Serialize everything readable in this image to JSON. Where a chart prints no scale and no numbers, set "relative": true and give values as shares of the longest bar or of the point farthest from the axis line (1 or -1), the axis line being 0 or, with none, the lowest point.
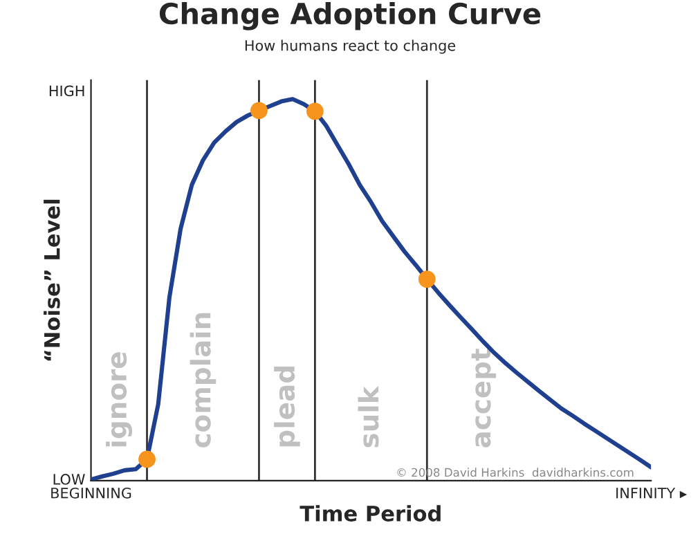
{
  "chart_data": {
    "type": "line",
    "title": "Change Adoption Curve",
    "subtitle": "How humans react to change",
    "xlabel": "Time Period",
    "ylabel": "“Noise” Level",
    "relative": true,
    "categories": [
      "BEGINNING",
      null,
      null,
      null,
      null,
      null,
      null,
      null,
      null,
      null,
      null,
      null,
      null,
      null,
      null,
      null,
      null,
      null,
      null,
      null,
      null,
      null,
      null,
      null,
      null,
      null,
      null,
      null,
      null,
      null,
      null,
      null,
      null,
      null,
      null,
      null,
      null,
      null,
      null,
      null,
      null,
      null,
      null,
      null,
      null,
      null,
      null,
      null,
      null,
      null,
      "INFINITY ▸"
    ],
    "series": [
      {
        "color": "#1f3f8f",
        "values": [
          0.003,
          0.011,
          0.018,
          0.027,
          0.03,
          0.056,
          0.2,
          0.48,
          0.66,
          0.775,
          0.84,
          0.886,
          0.915,
          0.94,
          0.957,
          0.97,
          0.982,
          0.994,
          1.0,
          0.987,
          0.968,
          0.93,
          0.88,
          0.83,
          0.775,
          0.73,
          0.68,
          0.64,
          0.6,
          0.565,
          0.528,
          0.493,
          0.46,
          0.428,
          0.397,
          0.365,
          0.335,
          0.308,
          0.283,
          0.259,
          0.235,
          0.212,
          0.189,
          0.17,
          0.15,
          0.131,
          0.112,
          0.093,
          0.074,
          0.055,
          0.035
        ]
      },
      {
        "type": "scatter",
        "color": "#f7941d",
        "marker": "circle",
        "values": [
          null,
          null,
          null,
          null,
          null,
          0.056,
          null,
          null,
          null,
          null,
          null,
          null,
          null,
          null,
          null,
          0.97,
          null,
          null,
          null,
          null,
          0.968,
          null,
          null,
          null,
          null,
          null,
          null,
          null,
          null,
          null,
          0.528,
          null,
          null,
          null,
          null,
          null,
          null,
          null,
          null,
          null,
          null,
          null,
          null,
          null,
          null,
          null,
          null,
          null,
          null,
          null,
          null
        ]
      }
    ],
    "annotations": [
      "HIGH",
      "LOW",
      "ignore",
      "complain",
      "plead",
      "sulk",
      "accept",
      "© 2008 David Harkins  davidharkins.com"
    ]
  }
}
